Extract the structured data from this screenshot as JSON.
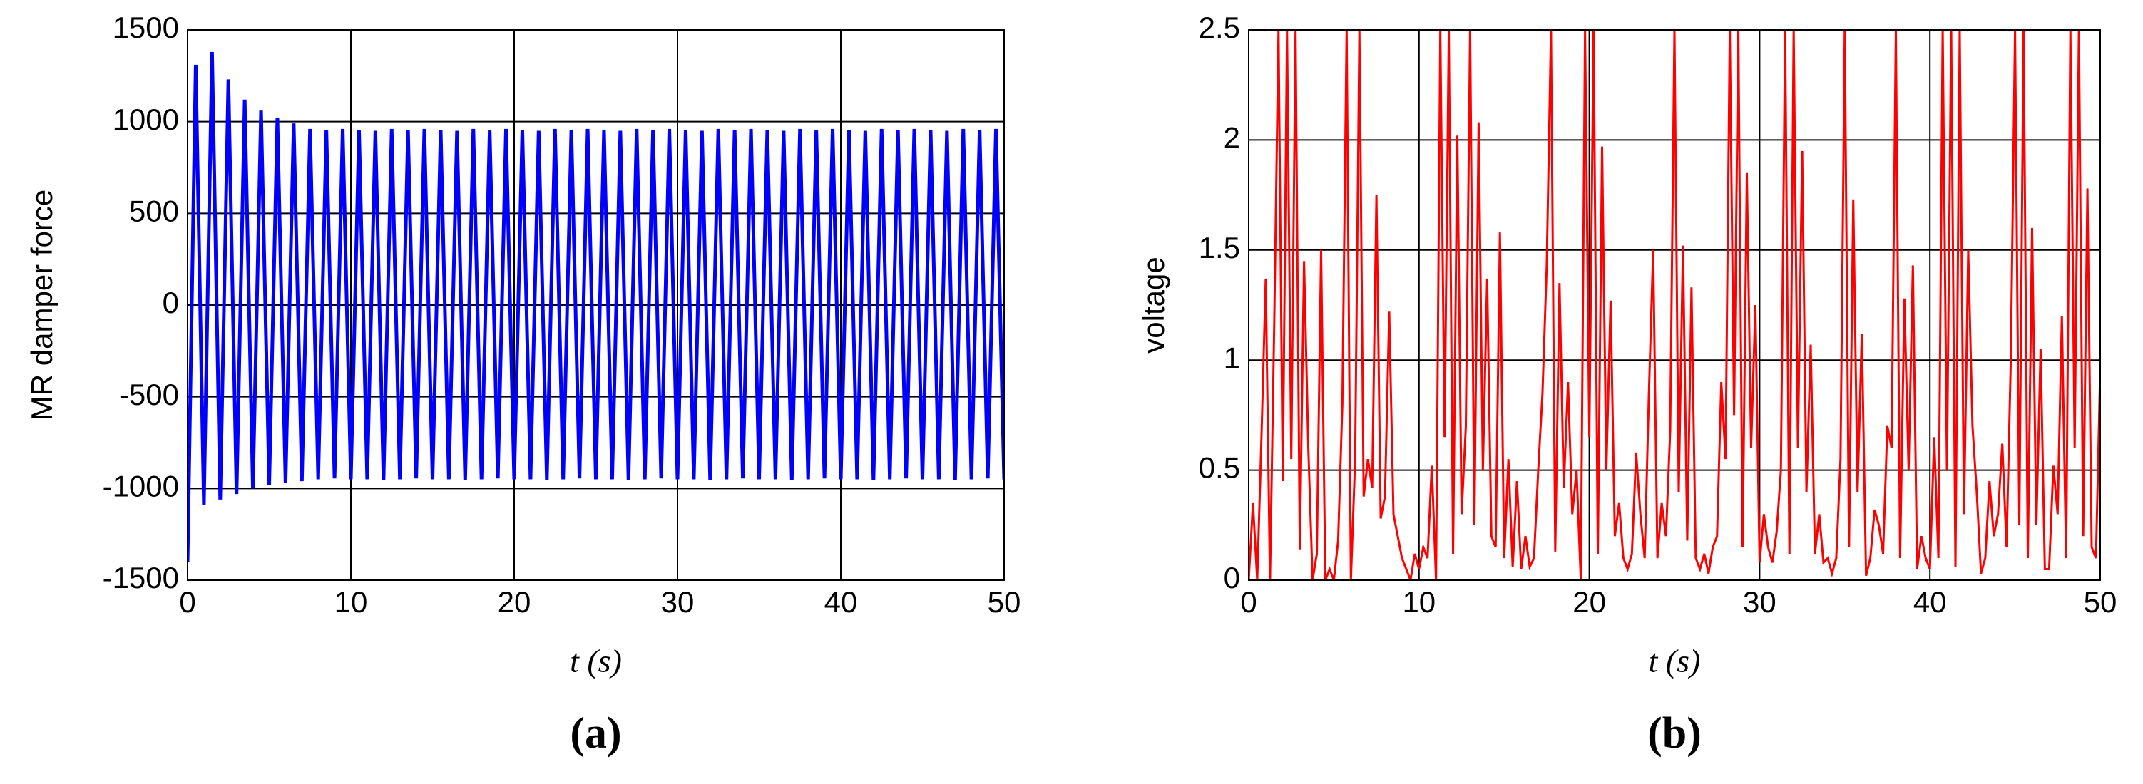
{
  "chart_data": [
    {
      "type": "line",
      "ylabel": "MR damper force",
      "xlabel": "t (s)",
      "panel_label": "(a)",
      "color": "#0000ff",
      "grid": true,
      "xlim": [
        0,
        50
      ],
      "xticks": [
        0,
        10,
        20,
        30,
        40,
        50
      ],
      "ylim": [
        -1500,
        1500
      ],
      "yticks": [
        -1500,
        -1000,
        -500,
        0,
        500,
        1000,
        1500
      ],
      "x": [
        0,
        0.5,
        1,
        1.5,
        2,
        2.5,
        3,
        3.5,
        4,
        4.5,
        5,
        5.5,
        6,
        6.5,
        7,
        7.5,
        8,
        8.5,
        9,
        9.5,
        10,
        10.5,
        11,
        11.5,
        12,
        12.5,
        13,
        13.5,
        14,
        14.5,
        15,
        15.5,
        16,
        16.5,
        17,
        17.5,
        18,
        18.5,
        19,
        19.5,
        20,
        20.5,
        21,
        21.5,
        22,
        22.5,
        23,
        23.5,
        24,
        24.5,
        25,
        25.5,
        26,
        26.5,
        27,
        27.5,
        28,
        28.5,
        29,
        29.5,
        30,
        30.5,
        31,
        31.5,
        32,
        32.5,
        33,
        33.5,
        34,
        34.5,
        35,
        35.5,
        36,
        36.5,
        37,
        37.5,
        38,
        38.5,
        39,
        39.5,
        40,
        40.5,
        41,
        41.5,
        42,
        42.5,
        43,
        43.5,
        44,
        44.5,
        45,
        45.5,
        46,
        46.5,
        47,
        47.5,
        48,
        48.5,
        49,
        49.5,
        50
      ],
      "values": [
        -1400,
        1310,
        -1090,
        1380,
        -1060,
        1230,
        -1030,
        1120,
        -1000,
        1060,
        -980,
        1020,
        -970,
        990,
        -960,
        960,
        -950,
        955,
        -945,
        960,
        -950,
        955,
        -950,
        950,
        -955,
        960,
        -950,
        955,
        -945,
        960,
        -950,
        955,
        -950,
        950,
        -955,
        960,
        -950,
        955,
        -945,
        960,
        -950,
        955,
        -950,
        950,
        -955,
        960,
        -950,
        955,
        -945,
        960,
        -950,
        955,
        -950,
        950,
        -955,
        960,
        -950,
        955,
        -945,
        960,
        -950,
        955,
        -950,
        950,
        -955,
        960,
        -950,
        955,
        -945,
        960,
        -950,
        955,
        -950,
        950,
        -955,
        960,
        -950,
        955,
        -945,
        960,
        -950,
        955,
        -950,
        950,
        -955,
        960,
        -950,
        955,
        -945,
        960,
        -950,
        955,
        -950,
        950,
        -955,
        960,
        -950,
        955,
        -945,
        960,
        -950
      ]
    },
    {
      "type": "line",
      "ylabel": "voltage",
      "xlabel": "t (s)",
      "panel_label": "(b)",
      "color": "#ff0000",
      "grid": true,
      "xlim": [
        0,
        50
      ],
      "xticks": [
        0,
        10,
        20,
        30,
        40,
        50
      ],
      "ylim": [
        0,
        2.5
      ],
      "yticks": [
        0,
        0.5,
        1,
        1.5,
        2,
        2.5
      ],
      "x": [
        0,
        0.25,
        0.5,
        0.75,
        1,
        1.25,
        1.5,
        1.75,
        2,
        2.25,
        2.5,
        2.75,
        3,
        3.25,
        3.5,
        3.75,
        4,
        4.25,
        4.5,
        4.75,
        5,
        5.25,
        5.5,
        5.75,
        6,
        6.25,
        6.5,
        6.75,
        7,
        7.25,
        7.5,
        7.75,
        8,
        8.25,
        8.5,
        8.75,
        9,
        9.25,
        9.5,
        9.75,
        10,
        10.25,
        10.5,
        10.75,
        11,
        11.25,
        11.5,
        11.75,
        12,
        12.25,
        12.5,
        12.75,
        13,
        13.25,
        13.5,
        13.75,
        14,
        14.25,
        14.5,
        14.75,
        15,
        15.25,
        15.5,
        15.75,
        16,
        16.25,
        16.5,
        16.75,
        17,
        17.25,
        17.5,
        17.75,
        18,
        18.25,
        18.5,
        18.75,
        19,
        19.25,
        19.5,
        19.75,
        20,
        20.25,
        20.5,
        20.75,
        21,
        21.25,
        21.5,
        21.75,
        22,
        22.25,
        22.5,
        22.75,
        23,
        23.25,
        23.5,
        23.75,
        24,
        24.25,
        24.5,
        24.75,
        25,
        25.25,
        25.5,
        25.75,
        26,
        26.25,
        26.5,
        26.75,
        27,
        27.25,
        27.5,
        27.75,
        28,
        28.25,
        28.5,
        28.75,
        29,
        29.25,
        29.5,
        29.75,
        30,
        30.25,
        30.5,
        30.75,
        31,
        31.25,
        31.5,
        31.75,
        32,
        32.25,
        32.5,
        32.75,
        33,
        33.25,
        33.5,
        33.75,
        34,
        34.25,
        34.5,
        34.75,
        35,
        35.25,
        35.5,
        35.75,
        36,
        36.25,
        36.5,
        36.75,
        37,
        37.25,
        37.5,
        37.75,
        38,
        38.25,
        38.5,
        38.75,
        39,
        39.25,
        39.5,
        39.75,
        40,
        40.25,
        40.5,
        40.75,
        41,
        41.25,
        41.5,
        41.75,
        42,
        42.25,
        42.5,
        42.75,
        43,
        43.25,
        43.5,
        43.75,
        44,
        44.25,
        44.5,
        44.75,
        45,
        45.25,
        45.5,
        45.75,
        46,
        46.25,
        46.5,
        46.75,
        47,
        47.25,
        47.5,
        47.75,
        48,
        48.25,
        48.5,
        48.75,
        49,
        49.25,
        49.5,
        49.75,
        50
      ],
      "values": [
        0,
        0.35,
        0,
        0.65,
        1.37,
        0,
        1.17,
        2.5,
        0.45,
        2.5,
        0.55,
        2.5,
        0.14,
        1.45,
        0.6,
        0,
        0.12,
        1.5,
        0,
        0.05,
        0,
        0.18,
        0.8,
        2.5,
        0,
        0.55,
        2.5,
        0.38,
        0.55,
        0.42,
        1.75,
        0.28,
        0.38,
        1.22,
        0.3,
        0.2,
        0.1,
        0.05,
        0,
        0.12,
        0.05,
        0.15,
        0.1,
        0.52,
        0,
        2.5,
        0.65,
        2.5,
        0.12,
        2.02,
        0.3,
        0.7,
        2.5,
        0.25,
        2.08,
        0.5,
        1.37,
        0.2,
        0.15,
        1.58,
        0.1,
        0.55,
        0.06,
        0.45,
        0.05,
        0.2,
        0.06,
        0.1,
        0.5,
        0.85,
        1.43,
        2.5,
        0.13,
        1.35,
        0.42,
        0.9,
        0.3,
        0.5,
        0,
        2.5,
        0.65,
        2.5,
        0.12,
        1.97,
        0.5,
        1.27,
        0.2,
        0.35,
        0.1,
        0.05,
        0.12,
        0.58,
        0.3,
        0.1,
        0.85,
        1.5,
        0.1,
        0.35,
        0.2,
        0.68,
        2.5,
        0.4,
        1.52,
        0.18,
        1.33,
        0.1,
        0.05,
        0.12,
        0.03,
        0.15,
        0.2,
        0.9,
        0.55,
        2.5,
        0.75,
        2.5,
        0.15,
        1.85,
        0.6,
        1.25,
        0.08,
        0.3,
        0.15,
        0.08,
        0.22,
        0.5,
        2.5,
        0.12,
        2.5,
        0.6,
        1.95,
        0.4,
        1.07,
        0.12,
        0.3,
        0.08,
        0.1,
        0.03,
        0.1,
        0.55,
        2.5,
        0.15,
        1.73,
        0.4,
        1.12,
        0.02,
        0.1,
        0.32,
        0.25,
        0.12,
        0.7,
        0.6,
        2.5,
        0.1,
        1.28,
        0.5,
        1.43,
        0.05,
        0.2,
        0.1,
        0.05,
        0.65,
        0.1,
        2.5,
        0.5,
        2.5,
        0.06,
        2.5,
        0.3,
        1.5,
        0.7,
        0.4,
        0.03,
        0.1,
        0.45,
        0.2,
        0.3,
        0.62,
        0.15,
        1.0,
        2.5,
        0.25,
        2.5,
        0.1,
        1.6,
        0.25,
        1.05,
        0.05,
        0.05,
        0.52,
        0.3,
        1.2,
        0.1,
        2.5,
        0.6,
        2.5,
        0.2,
        1.78,
        0.15,
        0.1,
        0.95
      ]
    }
  ]
}
